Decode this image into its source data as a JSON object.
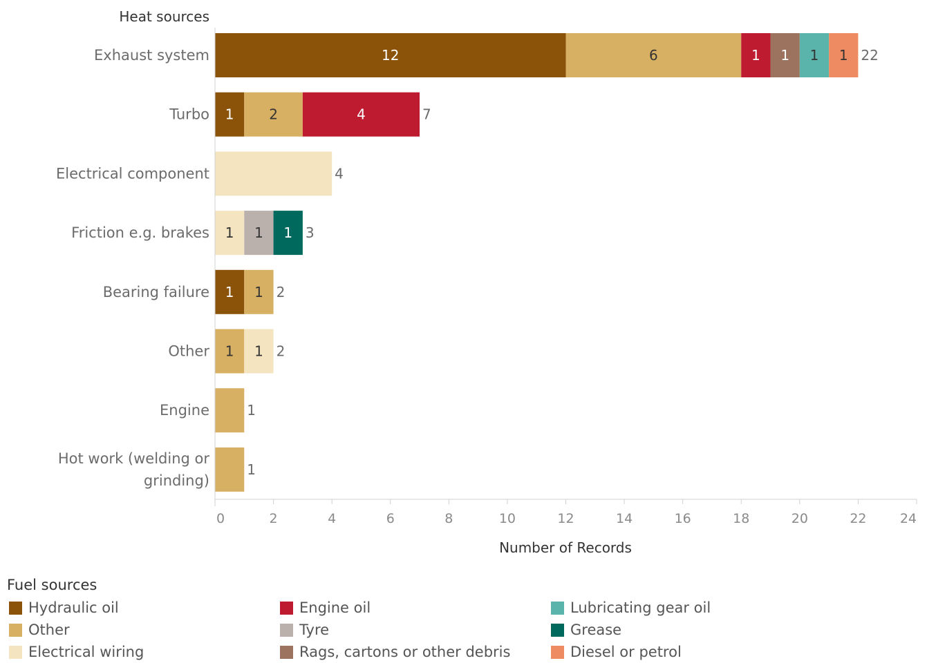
{
  "chart_data": {
    "type": "bar",
    "orientation": "horizontal",
    "stacked": true,
    "category_axis_title": "Heat sources",
    "xlabel": "Number of Records",
    "xlim": [
      0,
      24
    ],
    "xticks": [
      0,
      2,
      4,
      6,
      8,
      10,
      12,
      14,
      16,
      18,
      20,
      22,
      24
    ],
    "grid": false,
    "categories": [
      "Exhaust system",
      "Turbo",
      "Electrical component",
      "Friction e.g. brakes",
      "Bearing failure",
      "Other",
      "Engine",
      "Hot work (welding or grinding)"
    ],
    "category_label_lines": [
      [
        "Exhaust system"
      ],
      [
        "Turbo"
      ],
      [
        "Electrical component"
      ],
      [
        "Friction e.g. brakes"
      ],
      [
        "Bearing failure"
      ],
      [
        "Other"
      ],
      [
        "Engine"
      ],
      [
        "Hot work (welding or",
        "grinding)"
      ]
    ],
    "totals": [
      22,
      7,
      4,
      3,
      2,
      2,
      1,
      1
    ],
    "series": [
      {
        "name": "Hydraulic oil",
        "color": "#8B5309",
        "label_color": "#ffffff",
        "values": [
          12,
          1,
          0,
          0,
          1,
          0,
          0,
          0
        ]
      },
      {
        "name": "Other",
        "color": "#D8B063",
        "label_color": "#333333",
        "values": [
          6,
          2,
          0,
          0,
          1,
          1,
          1,
          1
        ]
      },
      {
        "name": "Electrical wiring",
        "color": "#F4E5C0",
        "label_color": "#333333",
        "values": [
          0,
          0,
          4,
          1,
          0,
          1,
          0,
          0
        ]
      },
      {
        "name": "Engine oil",
        "color": "#BE1A30",
        "label_color": "#ffffff",
        "values": [
          1,
          4,
          0,
          0,
          0,
          0,
          0,
          0
        ]
      },
      {
        "name": "Tyre",
        "color": "#BAB0AC",
        "label_color": "#333333",
        "values": [
          0,
          0,
          0,
          1,
          0,
          0,
          0,
          0
        ]
      },
      {
        "name": "Rags, cartons or other debris",
        "color": "#9C735E",
        "label_color": "#ffffff",
        "values": [
          1,
          0,
          0,
          0,
          0,
          0,
          0,
          0
        ]
      },
      {
        "name": "Lubricating gear oil",
        "color": "#5BB4AC",
        "label_color": "#333333",
        "values": [
          1,
          0,
          0,
          0,
          0,
          0,
          0,
          0
        ]
      },
      {
        "name": "Grease",
        "color": "#00695E",
        "label_color": "#ffffff",
        "values": [
          0,
          0,
          0,
          1,
          0,
          0,
          0,
          0
        ]
      },
      {
        "name": "Diesel or petrol",
        "color": "#EE8B62",
        "label_color": "#333333",
        "values": [
          1,
          0,
          0,
          0,
          0,
          0,
          0,
          0
        ]
      }
    ],
    "segment_labels_shown": [
      [
        true,
        true,
        false,
        true,
        false,
        true,
        true,
        false,
        true
      ],
      [
        true,
        true,
        false,
        true,
        false,
        false,
        false,
        false,
        false
      ],
      [
        false,
        false,
        false,
        false,
        false,
        false,
        false,
        false,
        false
      ],
      [
        false,
        false,
        true,
        false,
        true,
        false,
        false,
        true,
        false
      ],
      [
        true,
        true,
        false,
        false,
        false,
        false,
        false,
        false,
        false
      ],
      [
        false,
        true,
        true,
        false,
        false,
        false,
        false,
        false,
        false
      ],
      [
        false,
        false,
        false,
        false,
        false,
        false,
        false,
        false,
        false
      ],
      [
        false,
        false,
        false,
        false,
        false,
        false,
        false,
        false,
        false
      ]
    ],
    "legend": {
      "title": "Fuel sources",
      "placement": "bottom",
      "order": [
        "Hydraulic oil",
        "Other",
        "Electrical wiring",
        "Engine oil",
        "Tyre",
        "Rags, cartons or other debris",
        "Lubricating gear oil",
        "Grease",
        "Diesel or petrol"
      ]
    }
  }
}
